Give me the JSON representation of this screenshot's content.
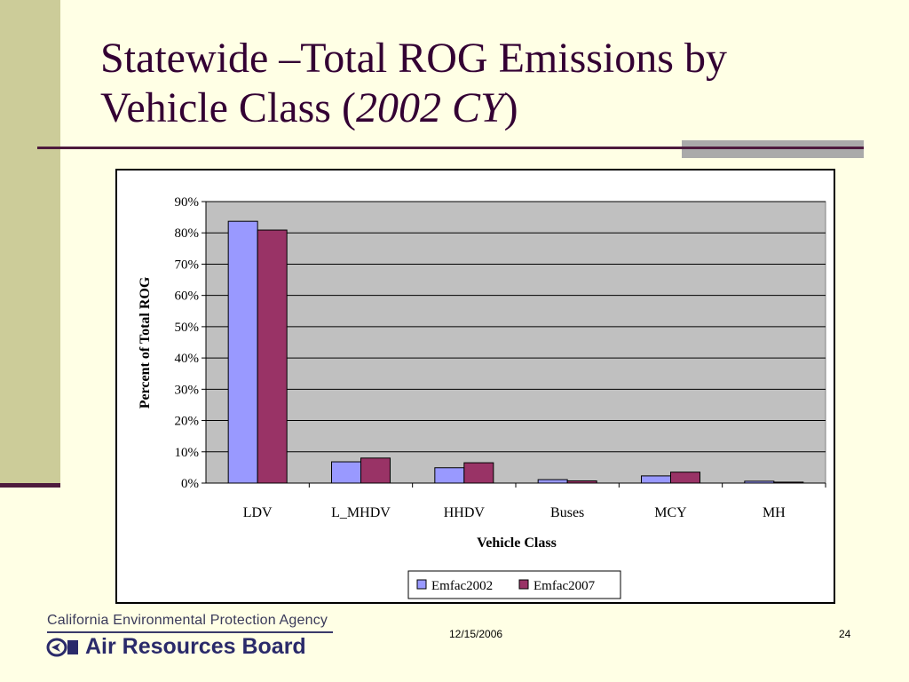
{
  "slide": {
    "title_line1": "Statewide –Total ROG Emissions by",
    "title_line2_prefix": "Vehicle Class (",
    "title_line2_italic": "2002 CY",
    "title_line2_suffix": ")"
  },
  "footer": {
    "agency": "California Environmental Protection Agency",
    "board": "Air Resources Board",
    "date": "12/15/2006",
    "page_number": "24"
  },
  "colors": {
    "emfac2002": "#9999ff",
    "emfac2007": "#993366",
    "plot_background": "#c0c0c0"
  },
  "chart_data": {
    "type": "bar",
    "categories": [
      "LDV",
      "L_MHDV",
      "HHDV",
      "Buses",
      "MCY",
      "MH"
    ],
    "series": [
      {
        "name": "Emfac2002",
        "values": [
          83.7,
          6.8,
          4.9,
          1.1,
          2.3,
          0.6
        ]
      },
      {
        "name": "Emfac2007",
        "values": [
          80.9,
          8.0,
          6.5,
          0.7,
          3.5,
          0.3
        ]
      }
    ],
    "xlabel": "Vehicle Class",
    "ylabel": "Percent of Total ROG",
    "ylim": [
      0,
      90
    ],
    "yticks": [
      "0%",
      "10%",
      "20%",
      "30%",
      "40%",
      "50%",
      "60%",
      "70%",
      "80%",
      "90%"
    ],
    "grid": true,
    "legend_position": "bottom"
  }
}
